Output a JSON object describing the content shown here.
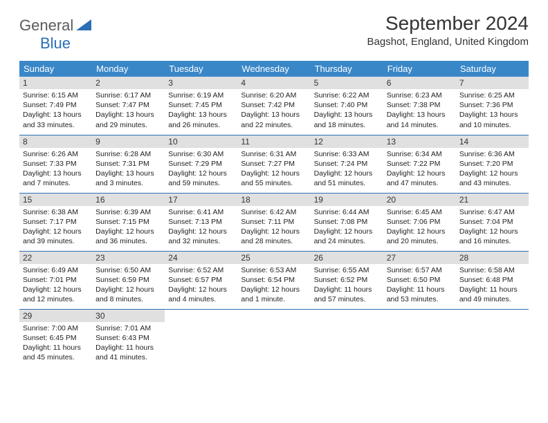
{
  "logo": {
    "part1": "General",
    "part2": "Blue"
  },
  "title": "September 2024",
  "location": "Bagshot, England, United Kingdom",
  "colors": {
    "header_bg": "#3a87c8",
    "header_text": "#ffffff",
    "daynum_bg": "#e0e0e0",
    "border": "#2b6fb5",
    "logo_gray": "#5a5a5a",
    "logo_blue": "#2b6fb5"
  },
  "weekdays": [
    "Sunday",
    "Monday",
    "Tuesday",
    "Wednesday",
    "Thursday",
    "Friday",
    "Saturday"
  ],
  "days": [
    {
      "n": "1",
      "sr": "6:15 AM",
      "ss": "7:49 PM",
      "dl": "13 hours and 33 minutes."
    },
    {
      "n": "2",
      "sr": "6:17 AM",
      "ss": "7:47 PM",
      "dl": "13 hours and 29 minutes."
    },
    {
      "n": "3",
      "sr": "6:19 AM",
      "ss": "7:45 PM",
      "dl": "13 hours and 26 minutes."
    },
    {
      "n": "4",
      "sr": "6:20 AM",
      "ss": "7:42 PM",
      "dl": "13 hours and 22 minutes."
    },
    {
      "n": "5",
      "sr": "6:22 AM",
      "ss": "7:40 PM",
      "dl": "13 hours and 18 minutes."
    },
    {
      "n": "6",
      "sr": "6:23 AM",
      "ss": "7:38 PM",
      "dl": "13 hours and 14 minutes."
    },
    {
      "n": "7",
      "sr": "6:25 AM",
      "ss": "7:36 PM",
      "dl": "13 hours and 10 minutes."
    },
    {
      "n": "8",
      "sr": "6:26 AM",
      "ss": "7:33 PM",
      "dl": "13 hours and 7 minutes."
    },
    {
      "n": "9",
      "sr": "6:28 AM",
      "ss": "7:31 PM",
      "dl": "13 hours and 3 minutes."
    },
    {
      "n": "10",
      "sr": "6:30 AM",
      "ss": "7:29 PM",
      "dl": "12 hours and 59 minutes."
    },
    {
      "n": "11",
      "sr": "6:31 AM",
      "ss": "7:27 PM",
      "dl": "12 hours and 55 minutes."
    },
    {
      "n": "12",
      "sr": "6:33 AM",
      "ss": "7:24 PM",
      "dl": "12 hours and 51 minutes."
    },
    {
      "n": "13",
      "sr": "6:34 AM",
      "ss": "7:22 PM",
      "dl": "12 hours and 47 minutes."
    },
    {
      "n": "14",
      "sr": "6:36 AM",
      "ss": "7:20 PM",
      "dl": "12 hours and 43 minutes."
    },
    {
      "n": "15",
      "sr": "6:38 AM",
      "ss": "7:17 PM",
      "dl": "12 hours and 39 minutes."
    },
    {
      "n": "16",
      "sr": "6:39 AM",
      "ss": "7:15 PM",
      "dl": "12 hours and 36 minutes."
    },
    {
      "n": "17",
      "sr": "6:41 AM",
      "ss": "7:13 PM",
      "dl": "12 hours and 32 minutes."
    },
    {
      "n": "18",
      "sr": "6:42 AM",
      "ss": "7:11 PM",
      "dl": "12 hours and 28 minutes."
    },
    {
      "n": "19",
      "sr": "6:44 AM",
      "ss": "7:08 PM",
      "dl": "12 hours and 24 minutes."
    },
    {
      "n": "20",
      "sr": "6:45 AM",
      "ss": "7:06 PM",
      "dl": "12 hours and 20 minutes."
    },
    {
      "n": "21",
      "sr": "6:47 AM",
      "ss": "7:04 PM",
      "dl": "12 hours and 16 minutes."
    },
    {
      "n": "22",
      "sr": "6:49 AM",
      "ss": "7:01 PM",
      "dl": "12 hours and 12 minutes."
    },
    {
      "n": "23",
      "sr": "6:50 AM",
      "ss": "6:59 PM",
      "dl": "12 hours and 8 minutes."
    },
    {
      "n": "24",
      "sr": "6:52 AM",
      "ss": "6:57 PM",
      "dl": "12 hours and 4 minutes."
    },
    {
      "n": "25",
      "sr": "6:53 AM",
      "ss": "6:54 PM",
      "dl": "12 hours and 1 minute."
    },
    {
      "n": "26",
      "sr": "6:55 AM",
      "ss": "6:52 PM",
      "dl": "11 hours and 57 minutes."
    },
    {
      "n": "27",
      "sr": "6:57 AM",
      "ss": "6:50 PM",
      "dl": "11 hours and 53 minutes."
    },
    {
      "n": "28",
      "sr": "6:58 AM",
      "ss": "6:48 PM",
      "dl": "11 hours and 49 minutes."
    },
    {
      "n": "29",
      "sr": "7:00 AM",
      "ss": "6:45 PM",
      "dl": "11 hours and 45 minutes."
    },
    {
      "n": "30",
      "sr": "7:01 AM",
      "ss": "6:43 PM",
      "dl": "11 hours and 41 minutes."
    }
  ],
  "labels": {
    "sunrise": "Sunrise:",
    "sunset": "Sunset:",
    "daylight": "Daylight:"
  }
}
